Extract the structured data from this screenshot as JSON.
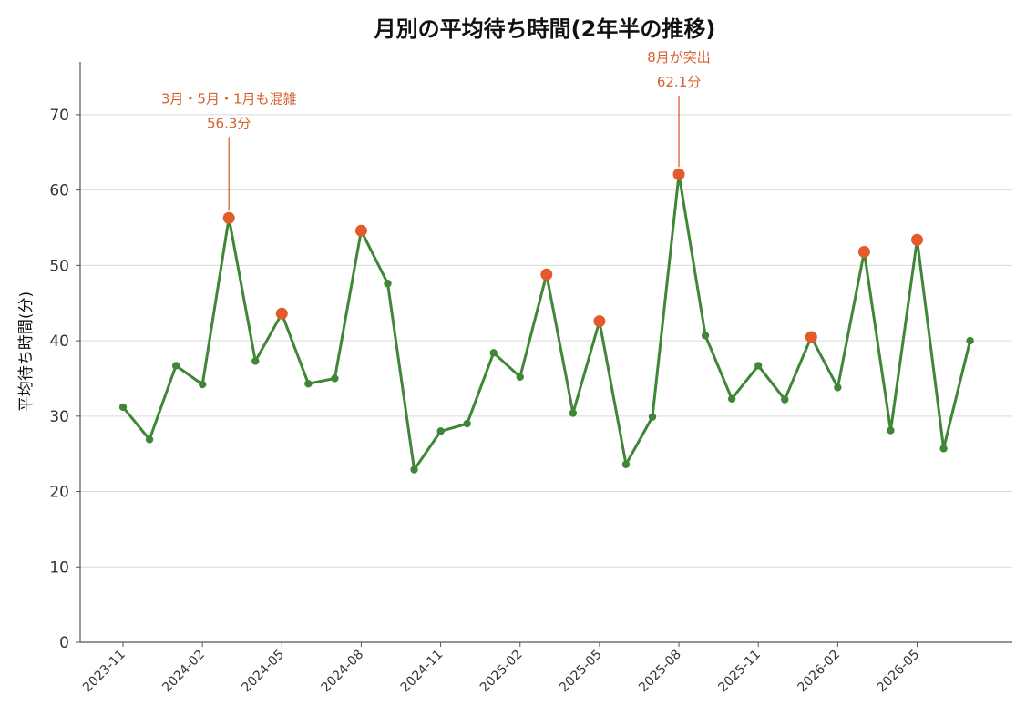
{
  "chart_data": {
    "type": "line",
    "title": "月別の平均待ち時間(2年半の推移)",
    "xlabel": "",
    "ylabel": "平均待ち時間(分)",
    "ylim": [
      0,
      77
    ],
    "yticks": [
      0,
      10,
      20,
      30,
      40,
      50,
      60,
      70
    ],
    "grid": "horizontal",
    "x": [
      "2023-11",
      "2023-12",
      "2024-01",
      "2024-02",
      "2024-03",
      "2024-04",
      "2024-05",
      "2024-06",
      "2024-07",
      "2024-08",
      "2024-09",
      "2024-10",
      "2024-11",
      "2024-12",
      "2025-01",
      "2025-02",
      "2025-03",
      "2025-04",
      "2025-05",
      "2025-06",
      "2025-07",
      "2025-08",
      "2025-09",
      "2025-10",
      "2025-11",
      "2025-12",
      "2026-01",
      "2026-02",
      "2026-03",
      "2026-04",
      "2026-05",
      "2026-06",
      "2026-07"
    ],
    "xtick_labels": [
      "2023-11",
      "2024-02",
      "2024-05",
      "2024-08",
      "2024-11",
      "2025-02",
      "2025-05",
      "2025-08",
      "2025-11",
      "2026-02",
      "2026-05"
    ],
    "series": [
      {
        "values": [
          31.2,
          26.9,
          36.7,
          34.2,
          56.3,
          37.3,
          43.6,
          34.3,
          35.0,
          54.6,
          47.6,
          22.9,
          28.0,
          29.0,
          38.4,
          35.2,
          48.8,
          30.4,
          42.6,
          23.6,
          29.9,
          62.1,
          40.7,
          32.3,
          36.7,
          32.2,
          40.5,
          33.8,
          51.8,
          28.1,
          53.4,
          25.7,
          40.0
        ],
        "highlighted": [
          false,
          false,
          false,
          false,
          true,
          false,
          true,
          false,
          false,
          true,
          false,
          false,
          false,
          false,
          false,
          false,
          true,
          false,
          true,
          false,
          false,
          true,
          false,
          false,
          false,
          false,
          true,
          false,
          true,
          false,
          true,
          false,
          false
        ]
      }
    ],
    "colors": {
      "line": "#3f8637",
      "highlight": "#e35a2b",
      "annotation": "#d4622f",
      "grid": "#d9d9d9",
      "axis": "#555555"
    },
    "annotations": [
      {
        "x": "2024-03",
        "value": 56.3,
        "text_line1": "3月・5月・1月も混雑",
        "text_line2": "56.3分",
        "label_y": 71.5
      },
      {
        "x": "2025-08",
        "value": 62.1,
        "text_line1": "8月が突出",
        "text_line2": "62.1分",
        "label_y": 77
      }
    ]
  }
}
